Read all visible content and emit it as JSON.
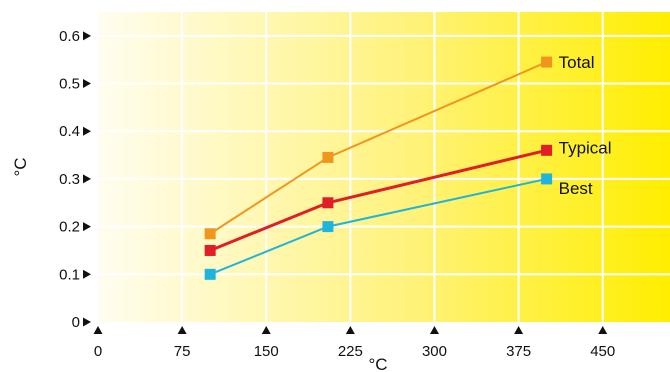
{
  "chart_data": {
    "type": "line",
    "xlabel": "°C",
    "ylabel": "°C",
    "xlim": [
      0,
      510
    ],
    "ylim": [
      0,
      0.65
    ],
    "x_ticks": [
      0,
      75,
      150,
      225,
      300,
      375,
      450
    ],
    "y_ticks": [
      0,
      0.1,
      0.2,
      0.3,
      0.4,
      0.5,
      0.6
    ],
    "x_tick_labels": [
      "0",
      "75",
      "150",
      "225",
      "300",
      "375",
      "450"
    ],
    "y_tick_labels": [
      "0",
      "0.1",
      "0.2",
      "0.3",
      "0.4",
      "0.5",
      "0.6"
    ],
    "grid": true,
    "background": {
      "from": "#fffdf0",
      "to": "#ffee00"
    },
    "grid_color": "#ffffff",
    "x": [
      100,
      205,
      400
    ],
    "series": [
      {
        "name": "Total",
        "values": [
          0.185,
          0.345,
          0.545
        ],
        "color": "#f0961e"
      },
      {
        "name": "Typical",
        "values": [
          0.15,
          0.25,
          0.36
        ],
        "color": "#e01e28"
      },
      {
        "name": "Best",
        "values": [
          0.1,
          0.2,
          0.3
        ],
        "color": "#1eb4dc"
      }
    ]
  }
}
